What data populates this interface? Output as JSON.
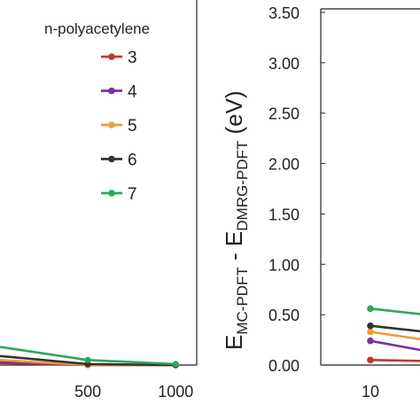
{
  "chart_data": [
    {
      "type": "line",
      "x_tick_labels": [
        "500",
        "1000"
      ],
      "y_tick_labels": [],
      "legend_title": "n-polyacetylene",
      "legend_position": "top-right",
      "grid": false,
      "x": [
        0,
        500,
        1000
      ],
      "series": [
        {
          "name": "3",
          "color": "#c0392b",
          "values": [
            0.02,
            0.0,
            0.0
          ]
        },
        {
          "name": "4",
          "color": "#7b2fa0",
          "values": [
            0.03,
            0.0,
            0.0
          ]
        },
        {
          "name": "5",
          "color": "#f39c2b",
          "values": [
            0.05,
            0.0,
            0.0
          ]
        },
        {
          "name": "6",
          "color": "#333333",
          "values": [
            0.09,
            0.01,
            0.0
          ]
        },
        {
          "name": "7",
          "color": "#2ca85a",
          "values": [
            0.18,
            0.05,
            0.01
          ]
        }
      ],
      "xlim": [
        -10,
        1120
      ],
      "ylim": [
        0.0,
        3.5
      ]
    },
    {
      "type": "line",
      "ylabel_main_1": "E",
      "ylabel_sub_1": "MC-PDFT",
      "ylabel_mid": " - E",
      "ylabel_sub_2": "DMRG-PDFT",
      "ylabel_unit": " (eV)",
      "y_tick_labels": [
        "0.00",
        "0.50",
        "1.00",
        "1.50",
        "2.00",
        "2.50",
        "3.00",
        "3.50"
      ],
      "x_tick_labels": [
        "10"
      ],
      "grid": false,
      "x": [
        10,
        14
      ],
      "series": [
        {
          "name": "3",
          "color": "#c0392b",
          "values": [
            0.05,
            0.04
          ]
        },
        {
          "name": "4",
          "color": "#7b2fa0",
          "values": [
            0.24,
            0.14
          ]
        },
        {
          "name": "5",
          "color": "#f39c2b",
          "values": [
            0.33,
            0.25
          ]
        },
        {
          "name": "6",
          "color": "#333333",
          "values": [
            0.39,
            0.33
          ]
        },
        {
          "name": "7",
          "color": "#2ca85a",
          "values": [
            0.56,
            0.5
          ]
        }
      ],
      "xlim": [
        6,
        14
      ],
      "ylim": [
        0.0,
        3.5
      ]
    }
  ]
}
